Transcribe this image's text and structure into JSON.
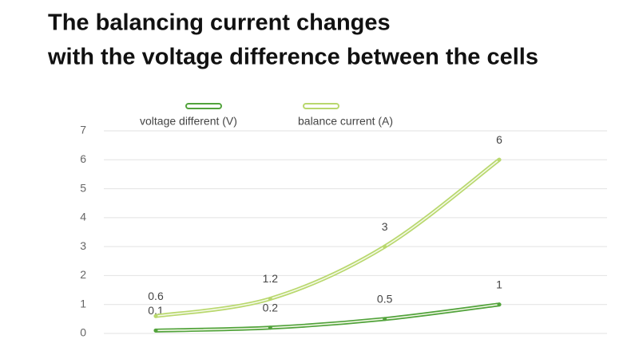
{
  "chart_data": {
    "type": "line",
    "title": [
      "The balancing current changes",
      "with the voltage difference between the cells"
    ],
    "categories": [
      null,
      null,
      null,
      null
    ],
    "series": [
      {
        "name": "voltage different  (V)",
        "color": "#52a33c",
        "values": [
          0.1,
          0.2,
          0.5,
          1
        ]
      },
      {
        "name": "balance current  (A)",
        "color": "#b9d86e",
        "values": [
          0.6,
          1.2,
          3,
          6
        ]
      }
    ],
    "ylim": [
      0,
      7
    ],
    "yticks": [
      0,
      1,
      2,
      3,
      4,
      5,
      6,
      7
    ],
    "grid": true,
    "legend": "top"
  }
}
